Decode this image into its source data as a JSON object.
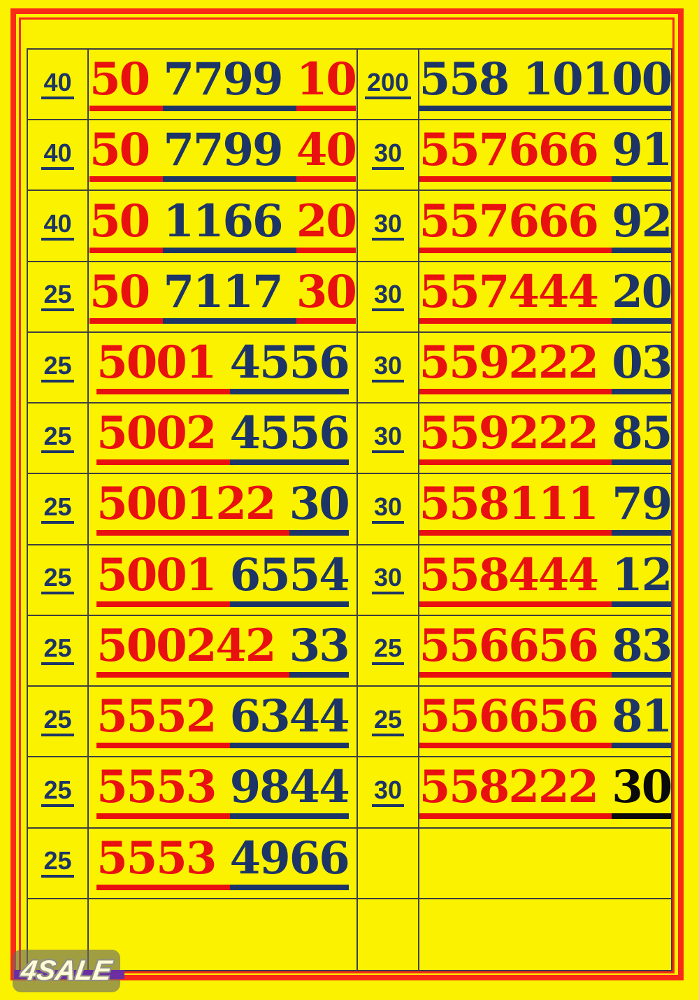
{
  "watermark": {
    "label": "4SALE"
  },
  "colors": {
    "background": "#FBF200",
    "border_red": "#F92A18",
    "digit_red": "#E91010",
    "digit_navy": "#1C3566",
    "digit_black": "#0A0A0A",
    "grid_line": "#3F3F3F",
    "watermark_purple": "#6C2FA2",
    "watermark_gray": "#696969"
  },
  "rows": [
    {
      "lp": "40",
      "ln": [
        {
          "t": "50 ",
          "c": "r"
        },
        {
          "t": "7799 ",
          "c": "n"
        },
        {
          "t": "10",
          "c": "r"
        }
      ],
      "rp": "200",
      "rn": [
        {
          "t": "558 10100",
          "c": "n"
        }
      ]
    },
    {
      "lp": "40",
      "ln": [
        {
          "t": "50 ",
          "c": "r"
        },
        {
          "t": "7799 ",
          "c": "n"
        },
        {
          "t": "40",
          "c": "r"
        }
      ],
      "rp": "30",
      "rn": [
        {
          "t": "557666 ",
          "c": "r"
        },
        {
          "t": "91",
          "c": "n"
        }
      ]
    },
    {
      "lp": "40",
      "ln": [
        {
          "t": "50 ",
          "c": "r"
        },
        {
          "t": "1166 ",
          "c": "n"
        },
        {
          "t": "20",
          "c": "r"
        }
      ],
      "rp": "30",
      "rn": [
        {
          "t": "557666 ",
          "c": "r"
        },
        {
          "t": "92",
          "c": "n"
        }
      ]
    },
    {
      "lp": "25",
      "ln": [
        {
          "t": "50 ",
          "c": "r"
        },
        {
          "t": "7117 ",
          "c": "n"
        },
        {
          "t": "30",
          "c": "r"
        }
      ],
      "rp": "30",
      "rn": [
        {
          "t": "557444 ",
          "c": "r"
        },
        {
          "t": "20",
          "c": "n"
        }
      ]
    },
    {
      "lp": "25",
      "ln": [
        {
          "t": "5001 ",
          "c": "r"
        },
        {
          "t": "4556",
          "c": "n"
        }
      ],
      "rp": "30",
      "rn": [
        {
          "t": "559222 ",
          "c": "r"
        },
        {
          "t": "03",
          "c": "n"
        }
      ]
    },
    {
      "lp": "25",
      "ln": [
        {
          "t": "5002 ",
          "c": "r"
        },
        {
          "t": "4556",
          "c": "n"
        }
      ],
      "rp": "30",
      "rn": [
        {
          "t": "559222 ",
          "c": "r"
        },
        {
          "t": "85",
          "c": "n"
        }
      ]
    },
    {
      "lp": "25",
      "ln": [
        {
          "t": "500122 ",
          "c": "r"
        },
        {
          "t": "30",
          "c": "n"
        }
      ],
      "rp": "30",
      "rn": [
        {
          "t": "558111 ",
          "c": "r"
        },
        {
          "t": "79",
          "c": "n"
        }
      ]
    },
    {
      "lp": "25",
      "ln": [
        {
          "t": "5001 ",
          "c": "r"
        },
        {
          "t": "6554",
          "c": "n"
        }
      ],
      "rp": "30",
      "rn": [
        {
          "t": "558444 ",
          "c": "r"
        },
        {
          "t": "12",
          "c": "n"
        }
      ]
    },
    {
      "lp": "25",
      "ln": [
        {
          "t": "500242 ",
          "c": "r"
        },
        {
          "t": "33",
          "c": "n"
        }
      ],
      "rp": "25",
      "rn": [
        {
          "t": "556656 ",
          "c": "r"
        },
        {
          "t": "83",
          "c": "n"
        }
      ]
    },
    {
      "lp": "25",
      "ln": [
        {
          "t": "5552 ",
          "c": "r"
        },
        {
          "t": "6344",
          "c": "n"
        }
      ],
      "rp": "25",
      "rn": [
        {
          "t": "556656 ",
          "c": "r"
        },
        {
          "t": "81",
          "c": "n"
        }
      ]
    },
    {
      "lp": "25",
      "ln": [
        {
          "t": "5553 ",
          "c": "r"
        },
        {
          "t": "9844",
          "c": "n"
        }
      ],
      "rp": "30",
      "rn": [
        {
          "t": "558222 ",
          "c": "r"
        },
        {
          "t": "30",
          "c": "k"
        }
      ]
    },
    {
      "lp": "25",
      "ln": [
        {
          "t": "5553 ",
          "c": "r"
        },
        {
          "t": "4966",
          "c": "n"
        }
      ],
      "rp": "",
      "rn": []
    },
    {
      "lp": "",
      "ln": [],
      "rp": "",
      "rn": []
    }
  ]
}
